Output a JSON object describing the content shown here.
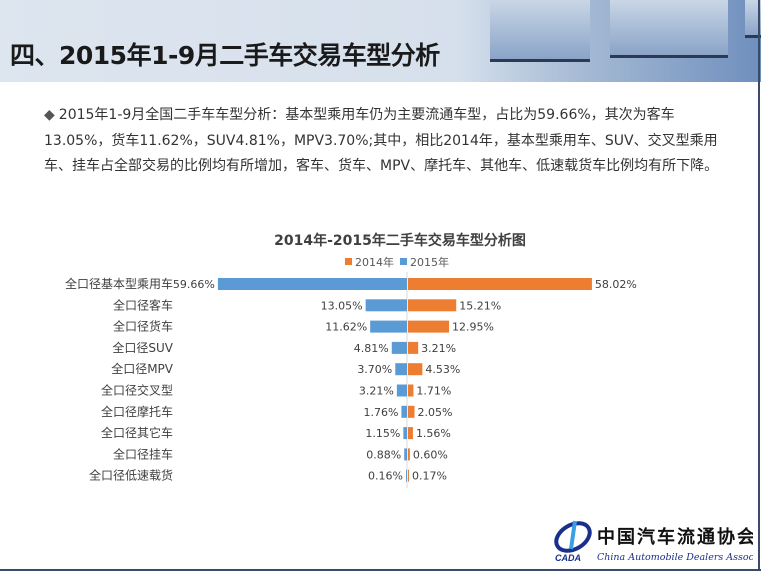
{
  "header": {
    "title": "四、2015年1-9月二手车交易车型分析"
  },
  "paragraph": {
    "bullet": "◆",
    "text": "2015年1-9月全国二手车车型分析：基本型乘用车仍为主要流通车型，占比为59.66%，其次为客车13.05%，货车11.62%，SUV4.81%，MPV3.70%;其中，相比2014年，基本型乘用车、SUV、交叉型乘用车、挂车占全部交易的比例均有所增加，客车、货车、MPV、摩托车、其他车、低速载货车比例均有所下降。"
  },
  "chart_data": {
    "type": "bar",
    "orientation": "horizontal-butterfly",
    "title": "2014年-2015年二手车交易车型分析图",
    "legend_position": "top",
    "categories": [
      "全口径基本型乘用车",
      "全口径客车",
      "全口径货车",
      "全口径SUV",
      "全口径MPV",
      "全口径交叉型",
      "全口径摩托车",
      "全口径其它车",
      "全口径挂车",
      "全口径低速载货"
    ],
    "series": [
      {
        "name": "2014年",
        "color": "#ed7d31",
        "side": "right",
        "values": [
          58.02,
          15.21,
          12.95,
          3.21,
          4.53,
          1.71,
          2.05,
          1.56,
          0.6,
          0.17
        ]
      },
      {
        "name": "2015年",
        "color": "#5b9bd5",
        "side": "left",
        "values": [
          59.66,
          13.05,
          11.62,
          4.81,
          3.7,
          3.21,
          1.76,
          1.15,
          0.88,
          0.16
        ]
      }
    ],
    "unit": "%",
    "grid": false
  },
  "logo": {
    "abbr": "CADA",
    "cn": "中国汽车流通协会",
    "en": "China Automobile Dealers Association"
  }
}
